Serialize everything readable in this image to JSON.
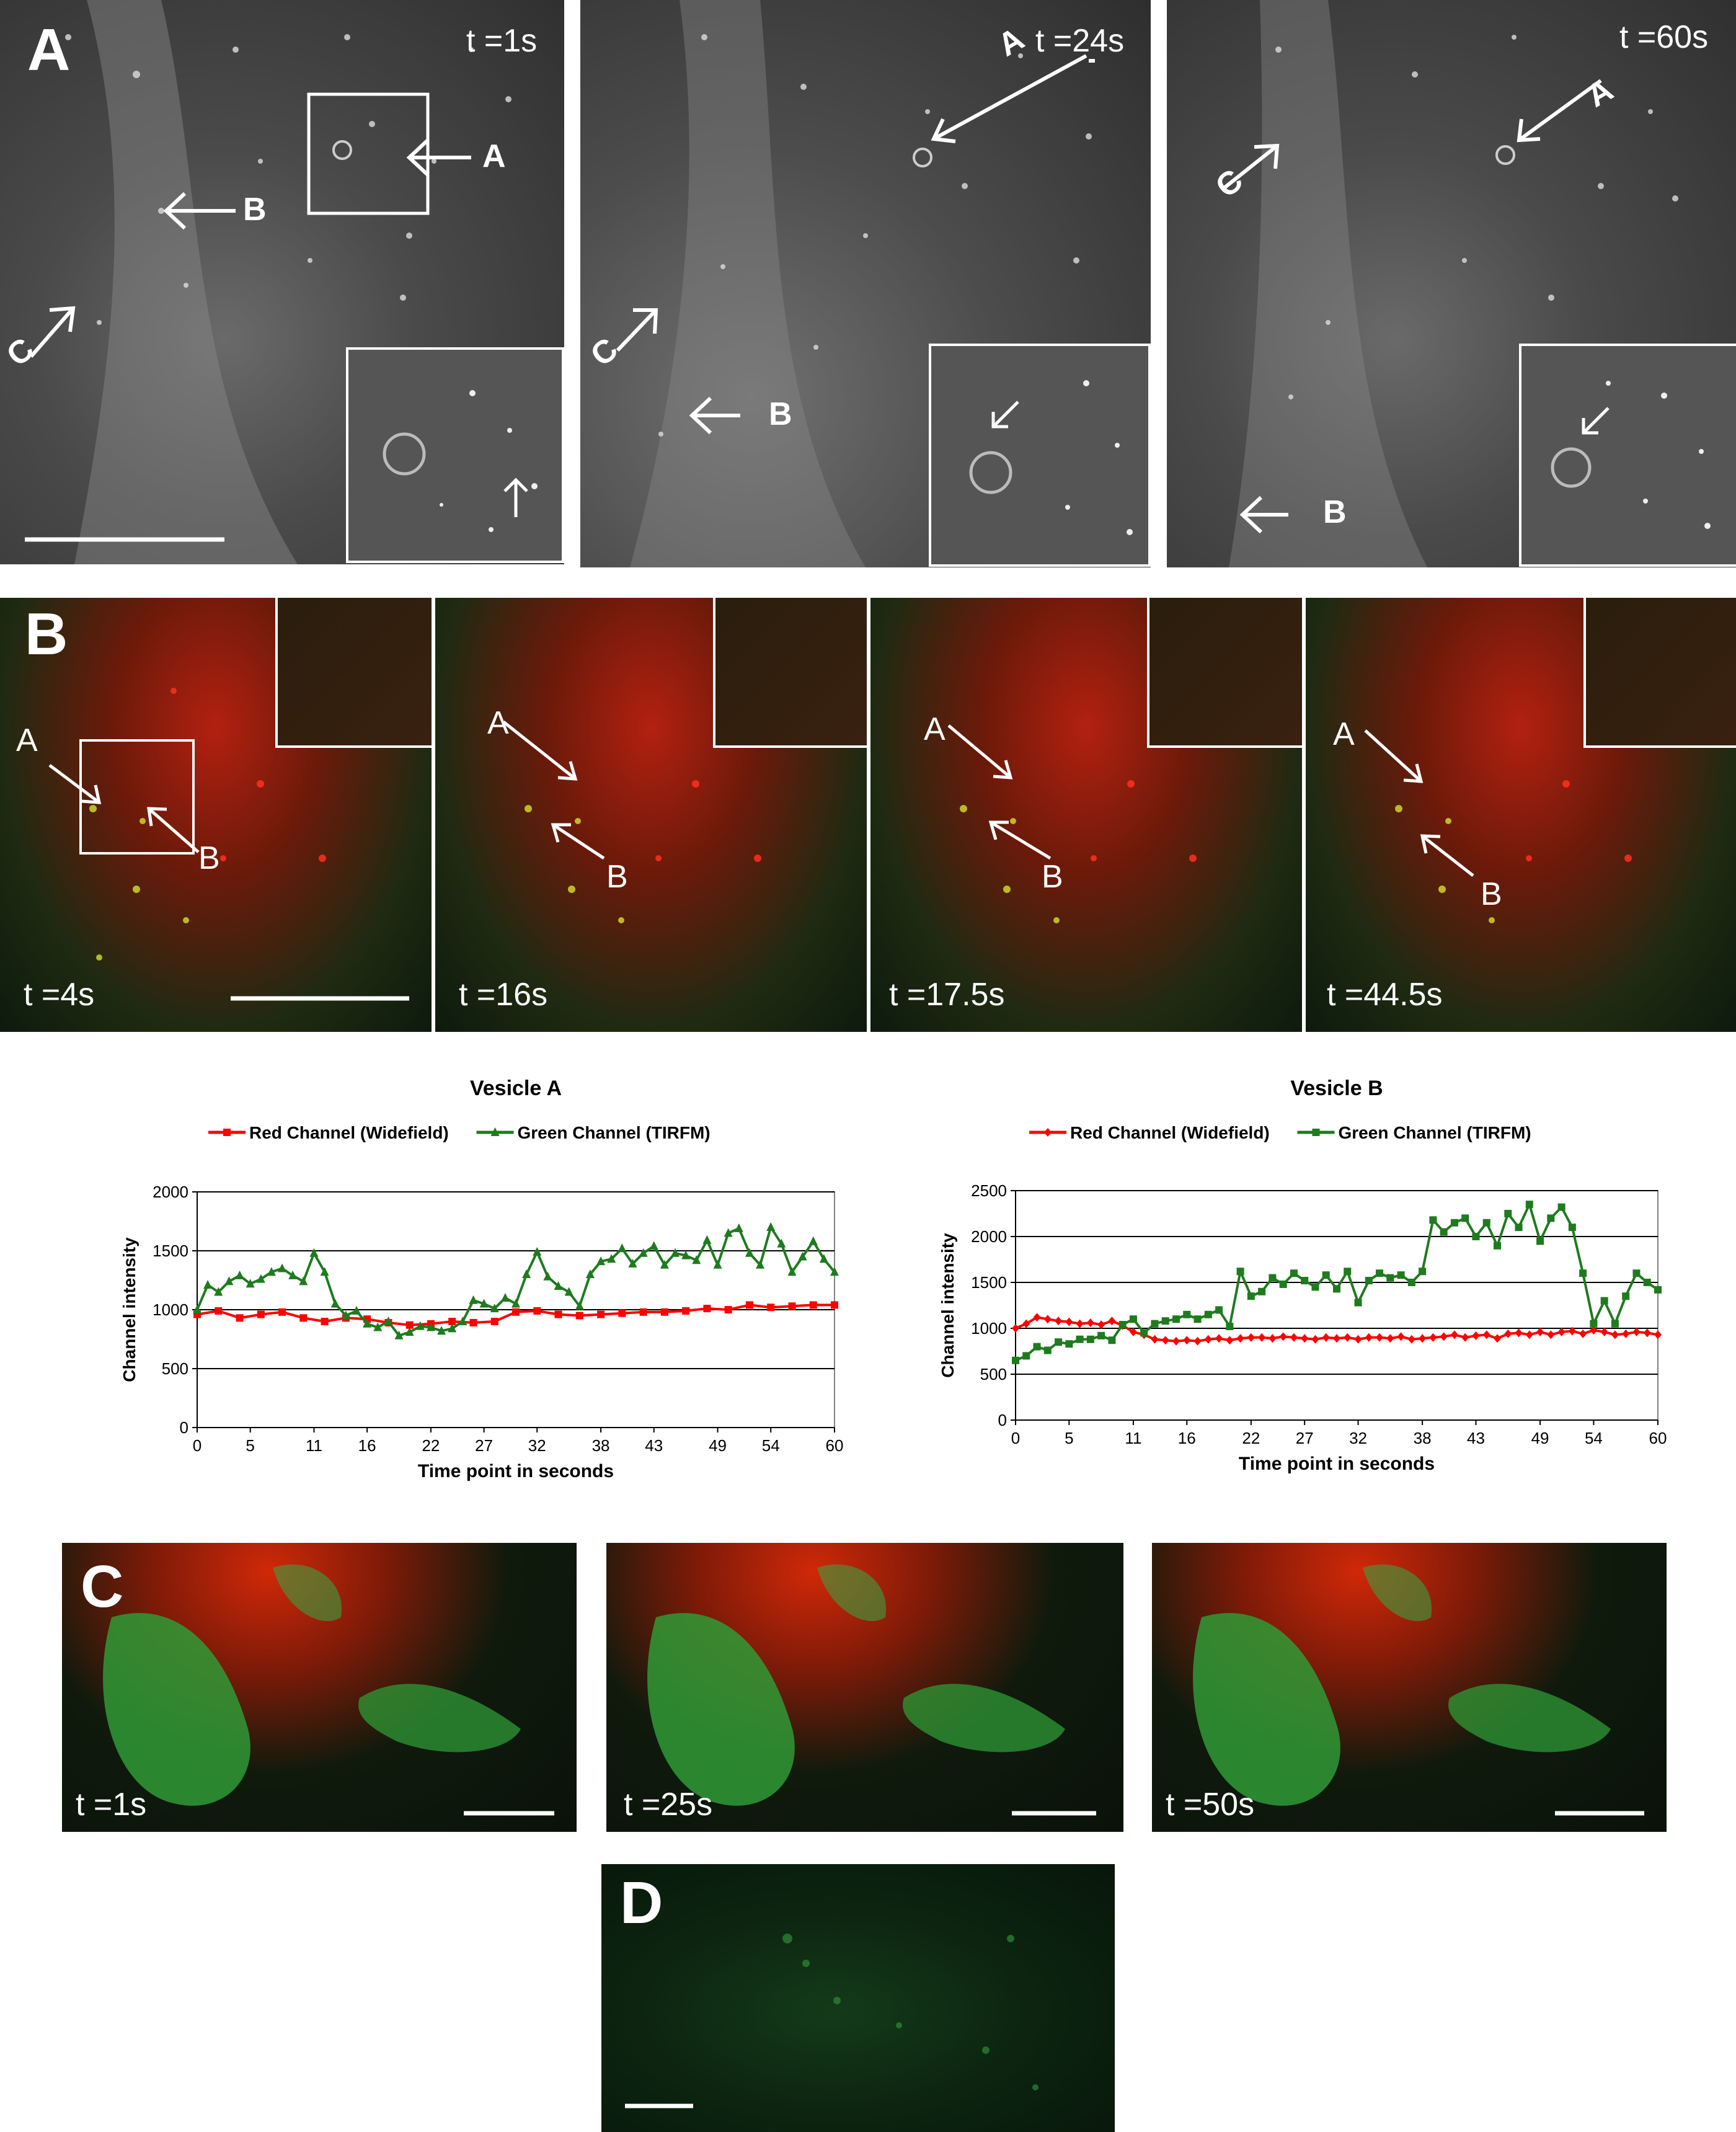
{
  "panelA": {
    "letter": "A",
    "frames": [
      {
        "time": "t =1s",
        "arrows": [
          "A",
          "B",
          "C"
        ]
      },
      {
        "time": "t =24s",
        "arrows": [
          "A",
          "B",
          "C"
        ]
      },
      {
        "time": "t =60s",
        "arrows": [
          "A",
          "B",
          "C"
        ]
      }
    ]
  },
  "panelB": {
    "letter": "B",
    "frames": [
      {
        "time": "t =4s"
      },
      {
        "time": "t =16s"
      },
      {
        "time": "t =17.5s"
      },
      {
        "time": "t =44.5s"
      }
    ],
    "arrow_labels": [
      "A",
      "B"
    ]
  },
  "chart_data": [
    {
      "type": "line",
      "title": "Vesicle A",
      "xlabel": "Time point in seconds",
      "ylabel": "Channel intensity",
      "ylim": [
        0,
        2000
      ],
      "yticks": [
        0,
        500,
        1000,
        1500,
        2000
      ],
      "xticks": [
        "0",
        "5",
        "11",
        "16",
        "22",
        "27",
        "32",
        "38",
        "43",
        "49",
        "54",
        "60"
      ],
      "legend_position": "top",
      "series": [
        {
          "name": "Red Channel (Widefield)",
          "color": "#ff0000",
          "marker": "square",
          "x": [
            0,
            2,
            4,
            6,
            8,
            10,
            12,
            14,
            16,
            18,
            20,
            22,
            24,
            26,
            28,
            30,
            32,
            34,
            36,
            38,
            40,
            42,
            44,
            46,
            48,
            50,
            52,
            54,
            56,
            58,
            60
          ],
          "values": [
            960,
            990,
            930,
            960,
            980,
            930,
            900,
            930,
            920,
            890,
            870,
            880,
            900,
            890,
            900,
            980,
            990,
            960,
            950,
            960,
            970,
            980,
            980,
            990,
            1010,
            1000,
            1040,
            1020,
            1030,
            1040,
            1040
          ]
        },
        {
          "name": "Green Channel (TIRFM)",
          "color": "#1e7b1e",
          "marker": "triangle",
          "x": [
            0,
            1,
            2,
            3,
            4,
            5,
            6,
            7,
            8,
            9,
            10,
            11,
            12,
            13,
            14,
            15,
            16,
            17,
            18,
            19,
            20,
            21,
            22,
            23,
            24,
            25,
            26,
            27,
            28,
            29,
            30,
            31,
            32,
            33,
            34,
            35,
            36,
            37,
            38,
            39,
            40,
            41,
            42,
            43,
            44,
            45,
            46,
            47,
            48,
            49,
            50,
            51,
            52,
            53,
            54,
            55,
            56,
            57,
            58,
            59,
            60
          ],
          "values": [
            1000,
            1210,
            1150,
            1240,
            1290,
            1220,
            1260,
            1320,
            1350,
            1290,
            1240,
            1480,
            1320,
            1050,
            950,
            990,
            880,
            850,
            900,
            780,
            810,
            860,
            850,
            820,
            840,
            900,
            1080,
            1050,
            1010,
            1100,
            1050,
            1300,
            1490,
            1280,
            1200,
            1150,
            1030,
            1300,
            1410,
            1430,
            1520,
            1390,
            1480,
            1540,
            1380,
            1480,
            1460,
            1420,
            1590,
            1380,
            1650,
            1690,
            1480,
            1380,
            1700,
            1560,
            1320,
            1450,
            1580,
            1430,
            1320
          ]
        }
      ]
    },
    {
      "type": "line",
      "title": "Vesicle B",
      "xlabel": "Time point in seconds",
      "ylabel": "Channel intensity",
      "ylim": [
        0,
        2500
      ],
      "yticks": [
        0,
        500,
        1000,
        1500,
        2000,
        2500
      ],
      "xticks": [
        "0",
        "5",
        "11",
        "16",
        "22",
        "27",
        "32",
        "38",
        "43",
        "49",
        "54",
        "60"
      ],
      "legend_position": "top",
      "series": [
        {
          "name": "Red Channel (Widefield)",
          "color": "#ff0000",
          "marker": "diamond",
          "x": [
            0,
            1,
            2,
            3,
            4,
            5,
            6,
            7,
            8,
            9,
            10,
            11,
            12,
            13,
            14,
            15,
            16,
            17,
            18,
            19,
            20,
            21,
            22,
            23,
            24,
            25,
            26,
            27,
            28,
            29,
            30,
            31,
            32,
            33,
            34,
            35,
            36,
            37,
            38,
            39,
            40,
            41,
            42,
            43,
            44,
            45,
            46,
            47,
            48,
            49,
            50,
            51,
            52,
            53,
            54,
            55,
            56,
            57,
            58,
            59,
            60
          ],
          "values": [
            1000,
            1050,
            1120,
            1100,
            1080,
            1070,
            1050,
            1060,
            1040,
            1080,
            1030,
            960,
            930,
            880,
            870,
            860,
            870,
            860,
            880,
            890,
            870,
            890,
            900,
            900,
            890,
            910,
            900,
            890,
            880,
            900,
            890,
            900,
            880,
            900,
            900,
            890,
            910,
            880,
            890,
            900,
            910,
            930,
            900,
            920,
            930,
            890,
            940,
            950,
            930,
            960,
            930,
            960,
            970,
            940,
            980,
            960,
            930,
            940,
            960,
            950,
            930
          ]
        },
        {
          "name": "Green Channel (TIRFM)",
          "color": "#1e7b1e",
          "marker": "square",
          "x": [
            0,
            1,
            2,
            3,
            4,
            5,
            6,
            7,
            8,
            9,
            10,
            11,
            12,
            13,
            14,
            15,
            16,
            17,
            18,
            19,
            20,
            21,
            22,
            23,
            24,
            25,
            26,
            27,
            28,
            29,
            30,
            31,
            32,
            33,
            34,
            35,
            36,
            37,
            38,
            39,
            40,
            41,
            42,
            43,
            44,
            45,
            46,
            47,
            48,
            49,
            50,
            51,
            52,
            53,
            54,
            55,
            56,
            57,
            58,
            59,
            60
          ],
          "values": [
            650,
            700,
            800,
            760,
            850,
            830,
            880,
            880,
            920,
            870,
            1040,
            1100,
            950,
            1050,
            1080,
            1100,
            1150,
            1100,
            1150,
            1200,
            1020,
            1620,
            1350,
            1400,
            1550,
            1480,
            1600,
            1520,
            1450,
            1580,
            1430,
            1620,
            1280,
            1520,
            1600,
            1550,
            1580,
            1500,
            1620,
            2180,
            2050,
            2150,
            2200,
            2000,
            2150,
            1900,
            2250,
            2100,
            2350,
            1950,
            2200,
            2320,
            2100,
            1600,
            1050,
            1300,
            1050,
            1350,
            1600,
            1500,
            1420
          ]
        }
      ]
    }
  ],
  "panelC": {
    "letter": "C",
    "frames": [
      {
        "time": "t =1s"
      },
      {
        "time": "t =25s"
      },
      {
        "time": "t =50s"
      }
    ]
  },
  "panelD": {
    "letter": "D"
  }
}
